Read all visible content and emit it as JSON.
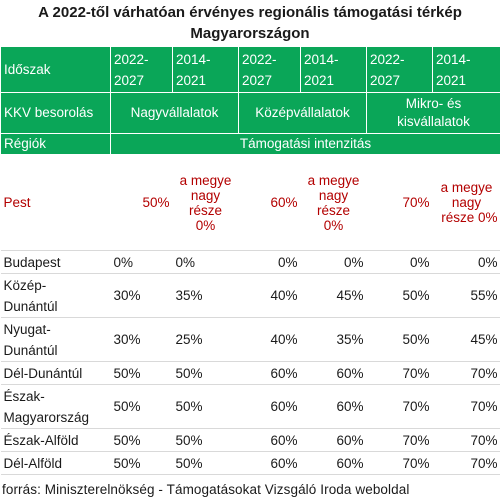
{
  "title_line1": "A 2022-től várhatóan érvényes regionális támogatási térkép",
  "title_line2": "Magyarországon",
  "header": {
    "period_label": "Időszak",
    "periods": [
      "2022-2027",
      "2014-2021",
      "2022-2027",
      "2014-2021",
      "2022-2027",
      "2014-2021"
    ],
    "period_lines": [
      [
        "2022-",
        "2027"
      ],
      [
        "2014-",
        "2021"
      ],
      [
        "2022-",
        "2027"
      ],
      [
        "2014-",
        "2021"
      ],
      [
        "2022-",
        "2027"
      ],
      [
        "2014-",
        "2021"
      ]
    ],
    "kkv_label": "KKV besorolás",
    "large": "Nagyvállalatok",
    "medium": "Középvállalatok",
    "micro_small_l1": "Mikro- és",
    "micro_small_l2": "kisvállalatok",
    "regions_label": "Régiók",
    "intensity_label": "Támogatási intenzitás"
  },
  "pest": {
    "label": "Pest",
    "v1": "50%",
    "v3": "60%",
    "v5": "70%",
    "county_note_lines": [
      "a megye",
      "nagy",
      "része",
      "0%"
    ],
    "county_note_lines_last": [
      "a megye",
      "nagy",
      "része 0%"
    ]
  },
  "rows": [
    {
      "region": "Budapest",
      "v": [
        "0%",
        "0%",
        "0%",
        "0%",
        "0%",
        "0%"
      ]
    },
    {
      "region_l1": "Közép-",
      "region_l2": "Dunántúl",
      "v": [
        "30%",
        "35%",
        "40%",
        "45%",
        "50%",
        "55%"
      ]
    },
    {
      "region_l1": "Nyugat-",
      "region_l2": "Dunántúl",
      "v": [
        "30%",
        "25%",
        "40%",
        "35%",
        "50%",
        "45%"
      ]
    },
    {
      "region": "Dél-Dunántúl",
      "v": [
        "50%",
        "50%",
        "60%",
        "60%",
        "70%",
        "70%"
      ]
    },
    {
      "region_l1": "Észak-",
      "region_l2": "Magyarország",
      "v": [
        "50%",
        "50%",
        "60%",
        "60%",
        "70%",
        "70%"
      ]
    },
    {
      "region": "Észak-Alföld",
      "v": [
        "50%",
        "50%",
        "60%",
        "60%",
        "70%",
        "70%"
      ]
    },
    {
      "region": "Dél-Alföld",
      "v": [
        "50%",
        "50%",
        "60%",
        "60%",
        "70%",
        "70%"
      ]
    }
  ],
  "source": "forrás: Miniszterelnökség - Támogatásokat Vizsgáló Iroda weboldal",
  "colors": {
    "header_green": "#0aa658",
    "pest_red": "#b30000"
  }
}
